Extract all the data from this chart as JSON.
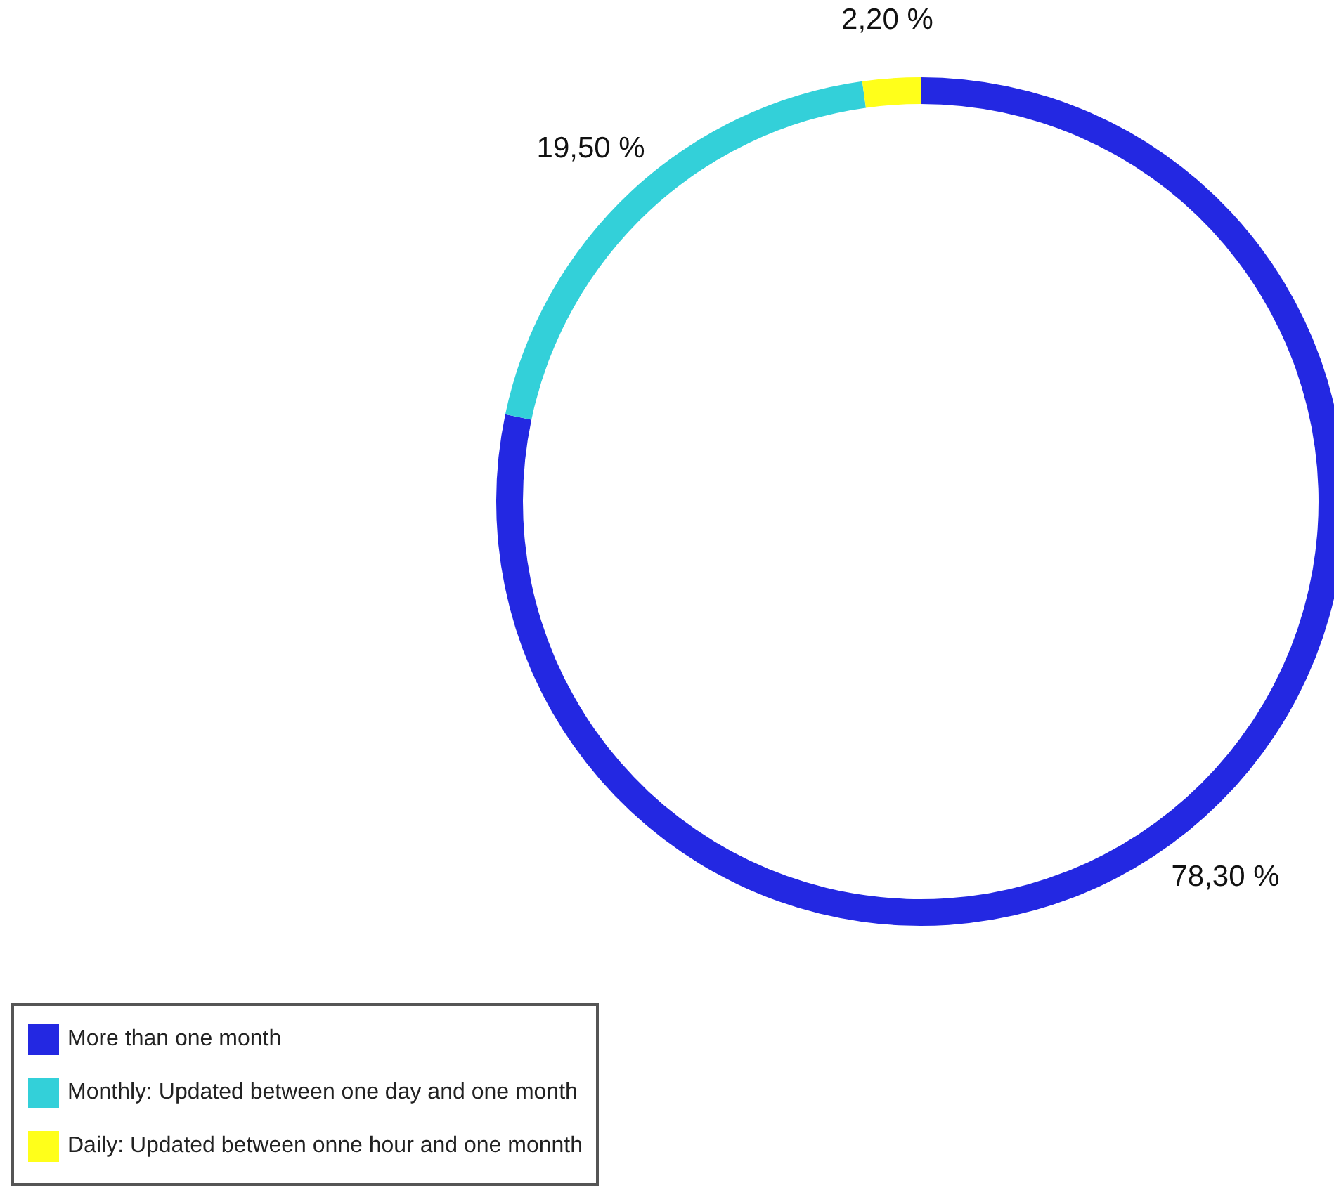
{
  "chart_data": {
    "type": "donut",
    "categories": [
      "More than one month",
      "Monthly: Updated between one day and one month",
      "Daily: Updated between onne hour and one monnth"
    ],
    "values": [
      78.3,
      19.5,
      2.2
    ],
    "value_labels": [
      "78,30 %",
      "19,50 %",
      "2,20 %"
    ],
    "colors": [
      "#2328e2",
      "#33d0d9",
      "#ffff1a"
    ],
    "legend": "bottom left"
  }
}
